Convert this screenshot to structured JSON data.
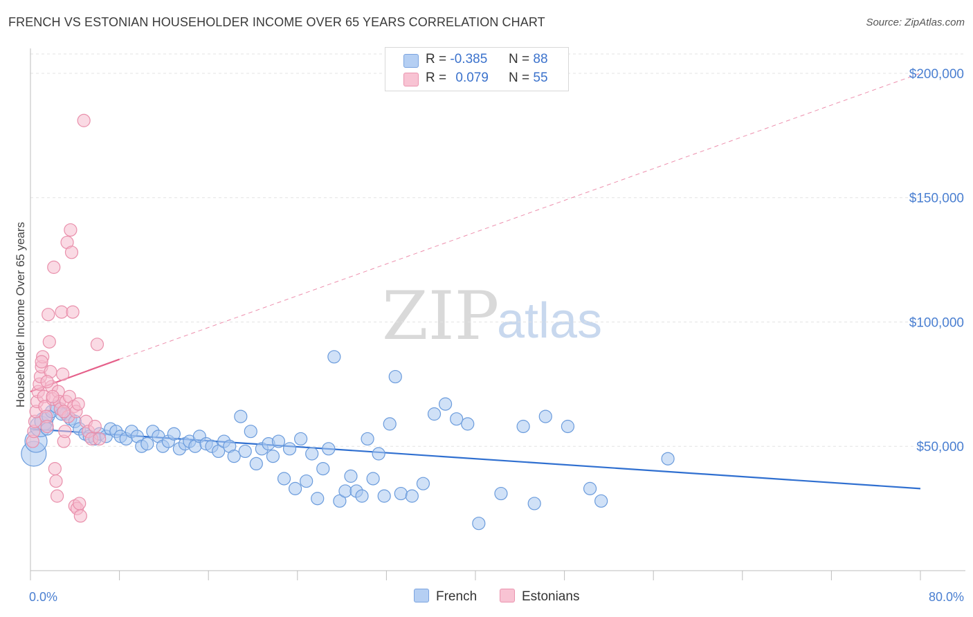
{
  "title": "FRENCH VS ESTONIAN HOUSEHOLDER INCOME OVER 65 YEARS CORRELATION CHART",
  "source": "Source: ZipAtlas.com",
  "watermark": {
    "part1": "ZIP",
    "part2": "atlas"
  },
  "colors": {
    "french_fill": "#a9c8f0",
    "french_stroke": "#6a9bdc",
    "french_line": "#2f6fd0",
    "estonian_fill": "#f6bccd",
    "estonian_stroke": "#e98fab",
    "estonian_line": "#e5608a",
    "axis_text": "#4a7fd1",
    "grid": "#e3e3e3"
  },
  "stats": [
    {
      "r_label": "R =",
      "r_value": "-0.385",
      "n_label": "N =",
      "n_value": "88",
      "series": "French"
    },
    {
      "r_label": "R =",
      "r_value": "0.079",
      "n_label": "N =",
      "n_value": "55",
      "series": "Estonians"
    }
  ],
  "legend": [
    "French",
    "Estonians"
  ],
  "chart_data": {
    "type": "scatter",
    "title": "FRENCH VS ESTONIAN HOUSEHOLDER INCOME OVER 65 YEARS CORRELATION CHART",
    "xlabel": "",
    "ylabel": "Householder Income Over 65 years",
    "xlim": [
      0,
      80
    ],
    "ylim": [
      0,
      210000
    ],
    "x_tick_labels": [
      "0.0%",
      "80.0%"
    ],
    "y_ticks": [
      50000,
      100000,
      150000,
      200000
    ],
    "y_tick_labels": [
      "$50,000",
      "$100,000",
      "$150,000",
      "$200,000"
    ],
    "grid": true,
    "legend_position": "bottom-center",
    "series": [
      {
        "name": "French",
        "points": [
          [
            0.3,
            47000
          ],
          [
            0.5,
            52000
          ],
          [
            0.9,
            58000
          ],
          [
            1.2,
            60000
          ],
          [
            1.6,
            62000
          ],
          [
            1.9,
            64000
          ],
          [
            2.3,
            66000
          ],
          [
            2.7,
            65000
          ],
          [
            3.2,
            63000
          ],
          [
            3.6,
            61000
          ],
          [
            4.0,
            60000
          ],
          [
            4.4,
            57000
          ],
          [
            4.9,
            55000
          ],
          [
            5.3,
            54000
          ],
          [
            5.8,
            53000
          ],
          [
            6.2,
            55000
          ],
          [
            6.8,
            54000
          ],
          [
            7.2,
            57000
          ],
          [
            7.7,
            56000
          ],
          [
            8.1,
            54000
          ],
          [
            8.6,
            53000
          ],
          [
            9.1,
            56000
          ],
          [
            9.6,
            54000
          ],
          [
            10.0,
            50000
          ],
          [
            10.5,
            51000
          ],
          [
            11.0,
            56000
          ],
          [
            11.5,
            54000
          ],
          [
            11.9,
            50000
          ],
          [
            12.4,
            52000
          ],
          [
            12.9,
            55000
          ],
          [
            13.4,
            49000
          ],
          [
            13.9,
            51000
          ],
          [
            14.3,
            52000
          ],
          [
            14.8,
            50000
          ],
          [
            15.2,
            54000
          ],
          [
            15.8,
            51000
          ],
          [
            16.3,
            50000
          ],
          [
            16.9,
            48000
          ],
          [
            17.4,
            52000
          ],
          [
            17.9,
            50000
          ],
          [
            18.3,
            46000
          ],
          [
            18.9,
            62000
          ],
          [
            19.3,
            48000
          ],
          [
            19.8,
            56000
          ],
          [
            20.3,
            43000
          ],
          [
            20.8,
            49000
          ],
          [
            21.4,
            51000
          ],
          [
            21.8,
            46000
          ],
          [
            22.3,
            52000
          ],
          [
            22.8,
            37000
          ],
          [
            23.3,
            49000
          ],
          [
            23.8,
            33000
          ],
          [
            24.3,
            53000
          ],
          [
            24.8,
            36000
          ],
          [
            25.3,
            47000
          ],
          [
            25.8,
            29000
          ],
          [
            26.3,
            41000
          ],
          [
            26.8,
            49000
          ],
          [
            27.3,
            86000
          ],
          [
            27.8,
            28000
          ],
          [
            28.3,
            32000
          ],
          [
            28.8,
            38000
          ],
          [
            29.3,
            32000
          ],
          [
            29.8,
            30000
          ],
          [
            30.3,
            53000
          ],
          [
            30.8,
            37000
          ],
          [
            31.3,
            47000
          ],
          [
            31.8,
            30000
          ],
          [
            32.3,
            59000
          ],
          [
            32.8,
            78000
          ],
          [
            33.3,
            31000
          ],
          [
            34.3,
            30000
          ],
          [
            35.3,
            35000
          ],
          [
            36.3,
            63000
          ],
          [
            37.3,
            67000
          ],
          [
            38.3,
            61000
          ],
          [
            39.3,
            59000
          ],
          [
            40.3,
            19000
          ],
          [
            42.3,
            31000
          ],
          [
            44.3,
            58000
          ],
          [
            45.3,
            27000
          ],
          [
            46.3,
            62000
          ],
          [
            48.3,
            58000
          ],
          [
            50.3,
            33000
          ],
          [
            51.3,
            28000
          ],
          [
            57.3,
            45000
          ],
          [
            1.5,
            57000
          ],
          [
            2.8,
            63000
          ]
        ],
        "trend": {
          "x": [
            0,
            80
          ],
          "y": [
            57000,
            33000
          ]
        }
      },
      {
        "name": "Estonians",
        "points": [
          [
            0.2,
            52000
          ],
          [
            0.3,
            56000
          ],
          [
            0.4,
            60000
          ],
          [
            0.5,
            64000
          ],
          [
            0.6,
            68000
          ],
          [
            0.7,
            72000
          ],
          [
            0.8,
            75000
          ],
          [
            0.9,
            78000
          ],
          [
            1.0,
            82000
          ],
          [
            1.1,
            86000
          ],
          [
            1.2,
            70000
          ],
          [
            1.3,
            66000
          ],
          [
            1.4,
            62000
          ],
          [
            1.5,
            58000
          ],
          [
            1.6,
            103000
          ],
          [
            1.7,
            92000
          ],
          [
            1.8,
            80000
          ],
          [
            1.9,
            74000
          ],
          [
            2.0,
            69000
          ],
          [
            2.1,
            122000
          ],
          [
            2.2,
            41000
          ],
          [
            2.3,
            36000
          ],
          [
            2.4,
            30000
          ],
          [
            2.5,
            72000
          ],
          [
            2.6,
            68000
          ],
          [
            2.7,
            65000
          ],
          [
            2.8,
            104000
          ],
          [
            2.9,
            79000
          ],
          [
            3.0,
            52000
          ],
          [
            3.1,
            56000
          ],
          [
            3.2,
            68000
          ],
          [
            3.3,
            132000
          ],
          [
            3.4,
            62000
          ],
          [
            3.5,
            70000
          ],
          [
            3.6,
            137000
          ],
          [
            3.7,
            128000
          ],
          [
            3.8,
            104000
          ],
          [
            3.9,
            66000
          ],
          [
            4.0,
            26000
          ],
          [
            4.1,
            64000
          ],
          [
            4.2,
            25000
          ],
          [
            4.3,
            67000
          ],
          [
            4.4,
            27000
          ],
          [
            4.5,
            22000
          ],
          [
            4.8,
            181000
          ],
          [
            5.0,
            60000
          ],
          [
            5.2,
            56000
          ],
          [
            5.5,
            53000
          ],
          [
            5.8,
            58000
          ],
          [
            6.0,
            91000
          ],
          [
            1.0,
            84000
          ],
          [
            1.5,
            76000
          ],
          [
            2.0,
            70000
          ],
          [
            3.0,
            64000
          ],
          [
            6.2,
            53000
          ]
        ],
        "trend": {
          "x": [
            0,
            8
          ],
          "y": [
            72000,
            85000
          ]
        },
        "trend_extrapolated": {
          "x": [
            8,
            80
          ],
          "y": [
            85000,
            200000
          ]
        }
      }
    ]
  }
}
